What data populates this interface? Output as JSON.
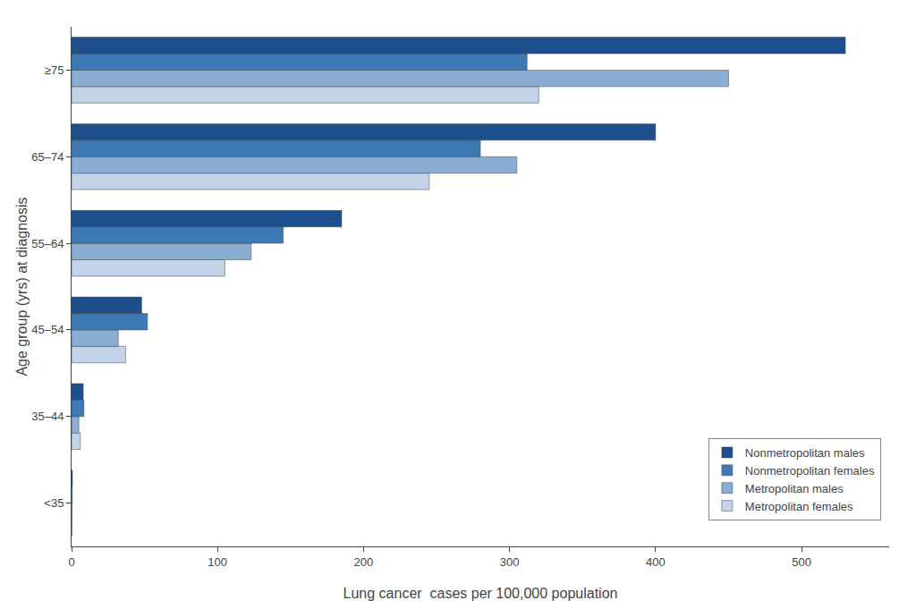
{
  "chart_data": {
    "type": "bar",
    "orientation": "horizontal",
    "categories": [
      "<35",
      "35–44",
      "45–54",
      "55–64",
      "65–74",
      "≥75"
    ],
    "series": [
      {
        "name": "Nonmetropolitan males",
        "color": "#1c4f8c",
        "values": [
          0.6,
          8.0,
          48.0,
          185.0,
          400.0,
          530.0
        ]
      },
      {
        "name": "Nonmetropolitan females",
        "color": "#3d7ab5",
        "values": [
          0.5,
          8.5,
          52.0,
          145.0,
          280.0,
          312.0
        ]
      },
      {
        "name": "Metropolitan males",
        "color": "#8aadd4",
        "values": [
          0.4,
          5.0,
          32.0,
          123.0,
          305.0,
          450.0
        ]
      },
      {
        "name": "Metropolitan females",
        "color": "#c4d4e8",
        "values": [
          0.3,
          6.0,
          37.0,
          105.0,
          245.0,
          320.0
        ]
      }
    ],
    "xlabel": "Lung cancer  cases per 100,000 population",
    "ylabel": "Age group (yrs) at diagnosis",
    "xlim": [
      0,
      560
    ],
    "xticks": [
      0,
      100,
      200,
      300,
      400,
      500
    ],
    "grid": false,
    "legend": "lower right"
  }
}
